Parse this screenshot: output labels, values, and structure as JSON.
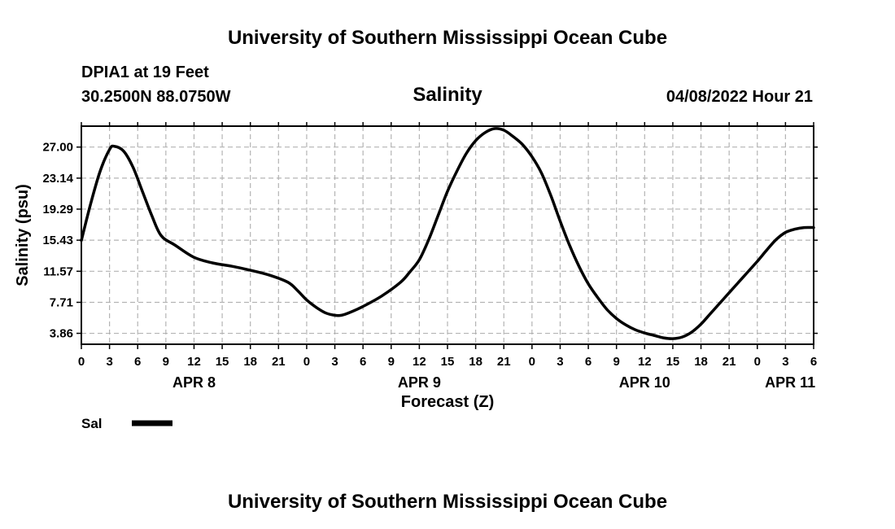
{
  "header": {
    "title_top": "University of Southern Mississippi Ocean Cube",
    "station": "DPIA1 at 19 Feet",
    "coords": "30.2500N  88.0750W",
    "variable": "Salinity",
    "timestamp": "04/08/2022 Hour 21",
    "title_bottom": "University of Southern Mississippi Ocean Cube"
  },
  "chart_data": {
    "type": "line",
    "title": "Salinity",
    "xlabel": "Forecast (Z)",
    "ylabel": "Salinity (psu)",
    "x_unit": "hours from APR 8 00Z",
    "xlim": [
      0,
      78
    ],
    "ylim": [
      2.5,
      29.6
    ],
    "grid": true,
    "y_ticks": [
      3.86,
      7.71,
      11.57,
      15.43,
      19.29,
      23.14,
      27.0
    ],
    "y_tick_labels": [
      "3.86",
      "7.71",
      "11.57",
      "15.43",
      "19.29",
      "23.14",
      "27.00"
    ],
    "x_ticks": [
      0,
      3,
      6,
      9,
      12,
      15,
      18,
      21,
      24,
      27,
      30,
      33,
      36,
      39,
      42,
      45,
      48,
      51,
      54,
      57,
      60,
      63,
      66,
      69,
      72,
      75,
      78
    ],
    "x_tick_labels": [
      "0",
      "3",
      "6",
      "9",
      "12",
      "15",
      "18",
      "21",
      "0",
      "3",
      "6",
      "9",
      "12",
      "15",
      "18",
      "21",
      "0",
      "3",
      "6",
      "9",
      "12",
      "15",
      "18",
      "21",
      "0",
      "3",
      "6"
    ],
    "date_labels": [
      {
        "label": "APR 8",
        "x": 12
      },
      {
        "label": "APR 9",
        "x": 36
      },
      {
        "label": "APR 10",
        "x": 60
      },
      {
        "label": "APR 11",
        "x": 75.5
      }
    ],
    "legend": [
      {
        "name": "Sal",
        "color": "#000000",
        "placement": "bottom-left"
      }
    ],
    "series": [
      {
        "name": "Sal",
        "x": [
          0,
          1,
          2,
          3,
          3.5,
          4.5,
          5.5,
          6.5,
          7.5,
          8.5,
          10,
          12,
          14,
          16,
          18,
          20,
          22,
          23,
          24,
          25,
          26,
          27,
          27.7,
          28.5,
          30,
          32,
          34,
          35,
          36,
          37,
          38,
          39,
          40,
          41,
          42,
          43,
          44,
          45,
          46,
          47,
          48,
          49,
          50,
          51,
          52,
          53,
          54,
          55,
          56,
          57,
          58,
          59,
          60,
          61,
          62,
          63,
          64,
          65,
          66,
          67,
          68,
          69,
          70,
          71,
          72,
          73,
          74,
          75,
          76,
          77,
          78
        ],
        "y": [
          15.4,
          20.0,
          24.0,
          26.7,
          27.1,
          26.5,
          24.5,
          21.5,
          18.5,
          16.0,
          14.8,
          13.3,
          12.6,
          12.2,
          11.7,
          11.1,
          10.2,
          9.2,
          8.0,
          7.1,
          6.4,
          6.1,
          6.1,
          6.4,
          7.2,
          8.5,
          10.2,
          11.5,
          13.0,
          15.5,
          18.5,
          21.5,
          24.0,
          26.2,
          27.8,
          28.8,
          29.3,
          29.1,
          28.3,
          27.3,
          25.8,
          23.8,
          21.0,
          17.8,
          14.8,
          12.2,
          10.0,
          8.3,
          6.8,
          5.7,
          4.9,
          4.3,
          3.9,
          3.6,
          3.3,
          3.2,
          3.4,
          4.0,
          5.0,
          6.3,
          7.6,
          8.9,
          10.2,
          11.5,
          12.8,
          14.2,
          15.5,
          16.4,
          16.8,
          17.0,
          17.0
        ]
      }
    ]
  }
}
